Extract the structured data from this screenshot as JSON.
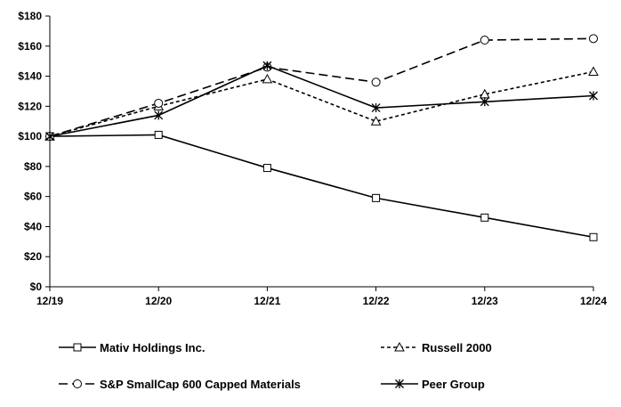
{
  "chart_data": {
    "type": "line",
    "title": "",
    "xlabel": "",
    "ylabel": "",
    "categories": [
      "12/19",
      "12/20",
      "12/21",
      "12/22",
      "12/23",
      "12/24"
    ],
    "ylim": [
      0,
      180
    ],
    "yticks": [
      0,
      20,
      40,
      60,
      80,
      100,
      120,
      140,
      160,
      180
    ],
    "ytick_labels": [
      "$0",
      "$20",
      "$40",
      "$60",
      "$80",
      "$100",
      "$120",
      "$140",
      "$160",
      "$180"
    ],
    "grid": false,
    "legend_position": "bottom",
    "series": [
      {
        "name": "Mativ Holdings Inc.",
        "values": [
          100,
          101,
          79,
          59,
          46,
          33
        ],
        "marker": "square",
        "line_style": "solid",
        "color": "#000000"
      },
      {
        "name": "Russell 2000",
        "values": [
          100,
          120,
          138,
          110,
          128,
          143
        ],
        "marker": "triangle",
        "line_style": "dotted",
        "color": "#000000"
      },
      {
        "name": "S&P SmallCap 600 Capped Materials",
        "values": [
          100,
          122,
          146,
          136,
          164,
          165
        ],
        "marker": "circle",
        "line_style": "dashed",
        "color": "#000000"
      },
      {
        "name": "Peer Group",
        "values": [
          100,
          114,
          147,
          119,
          123,
          127
        ],
        "marker": "star",
        "line_style": "solid",
        "color": "#000000"
      }
    ]
  }
}
